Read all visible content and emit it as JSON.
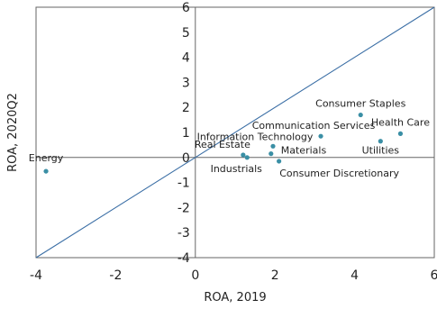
{
  "chart_data": {
    "type": "scatter",
    "xlabel": "ROA, 2019",
    "ylabel": "ROA, 2020Q2",
    "xlim": [
      -4,
      6
    ],
    "ylim": [
      -4,
      6
    ],
    "x_ticks": [
      -4,
      -2,
      0,
      2,
      4,
      6
    ],
    "y_ticks": [
      -4,
      -3,
      -2,
      -1,
      0,
      1,
      2,
      3,
      4,
      5,
      6
    ],
    "grid": false,
    "reference_line": {
      "from": [
        -4,
        -4
      ],
      "to": [
        6,
        6
      ],
      "color": "#3a6ea5"
    },
    "point_color": "#3a8fa5",
    "points": [
      {
        "label": "Energy",
        "x": -3.75,
        "y": -0.55
      },
      {
        "label": "Consumer Staples",
        "x": 4.15,
        "y": 1.7
      },
      {
        "label": "Health Care",
        "x": 5.15,
        "y": 0.95
      },
      {
        "label": "Utilities",
        "x": 4.65,
        "y": 0.65
      },
      {
        "label": "Communication Services",
        "x": 3.15,
        "y": 0.85
      },
      {
        "label": "Information Technology",
        "x": 1.95,
        "y": 0.45
      },
      {
        "label": "Real Estate",
        "x": 1.2,
        "y": 0.1
      },
      {
        "label": "Materials",
        "x": 1.9,
        "y": 0.15
      },
      {
        "label": "Industrials",
        "x": 1.3,
        "y": 0.0
      },
      {
        "label": "Consumer Discretionary",
        "x": 2.1,
        "y": -0.15
      }
    ]
  }
}
